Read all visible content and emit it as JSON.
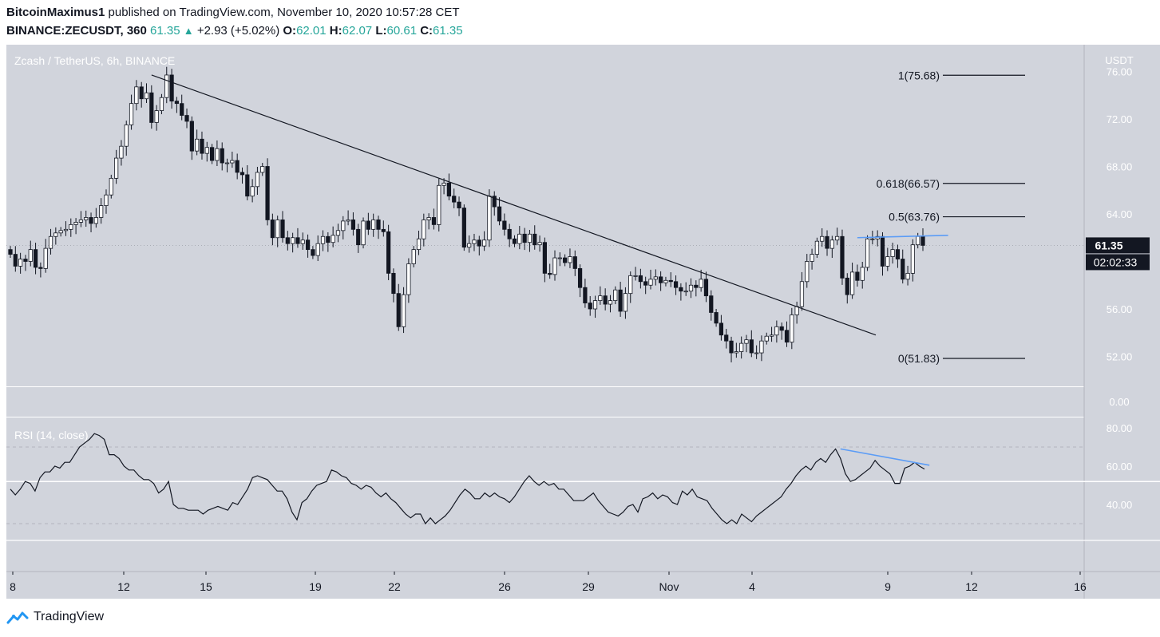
{
  "header": {
    "author": "BitcoinMaximus1",
    "published_text": "published on TradingView.com, November 10, 2020 10:57:28 CET",
    "symbol": "BINANCE:ZECUSDT, 360",
    "last": "61.35",
    "change": "+2.93 (+5.02%)",
    "o_label": "O:",
    "o_value": "62.01",
    "h_label": "H:",
    "h_value": "62.07",
    "l_label": "L:",
    "l_value": "60.61",
    "c_label": "C:",
    "c_value": "61.35"
  },
  "footer": {
    "brand": "TradingView"
  },
  "colors": {
    "pane_bg": "#d1d4dc",
    "up_candle": "#ffffff",
    "down_candle": "#131722",
    "trendline": "#131722",
    "highlight_line": "#5b9cf6",
    "price_tag_bg": "#131722"
  },
  "chart_data": {
    "type": "candlestick",
    "title": "Zcash / TetherUS, 6h, BINANCE",
    "ylabel": "USDT",
    "price_ylim": [
      51.0,
      76.0
    ],
    "price_ticks": [
      "76.00",
      "72.00",
      "68.00",
      "64.00",
      "60.00",
      "56.00",
      "52.00"
    ],
    "volume_tick": "0.00",
    "x_tick_labels": [
      "8",
      "12",
      "15",
      "19",
      "22",
      "26",
      "29",
      "Nov",
      "4",
      "9",
      "12",
      "16"
    ],
    "current_price_label": "61.35",
    "countdown_label": "02:02:33",
    "fib_levels": [
      {
        "label": "1(75.68)",
        "value": 75.68
      },
      {
        "label": "0.618(66.57)",
        "value": 66.57
      },
      {
        "label": "0.5(63.76)",
        "value": 63.76
      },
      {
        "label": "0(51.83)",
        "value": 51.83
      }
    ],
    "candles_close": [
      60.6,
      59.6,
      60.2,
      60.0,
      61.0,
      59.5,
      59.4,
      61.1,
      62.1,
      62.4,
      62.6,
      62.7,
      63.1,
      63.3,
      63.5,
      63.7,
      63.2,
      63.7,
      64.7,
      65.6,
      67.0,
      68.7,
      69.7,
      71.5,
      73.3,
      74.7,
      73.7,
      74.2,
      71.7,
      72.7,
      73.8,
      75.7,
      73.5,
      73.3,
      72.3,
      71.8,
      69.3,
      70.3,
      69.1,
      69.6,
      68.5,
      69.5,
      68.3,
      68.3,
      68.5,
      67.5,
      67.3,
      65.5,
      66.3,
      67.5,
      68.0,
      63.5,
      62.0,
      63.5,
      62.0,
      61.5,
      62.0,
      61.5,
      61.8,
      61.0,
      60.5,
      61.5,
      62.1,
      61.6,
      62.2,
      62.6,
      63.4,
      63.5,
      62.7,
      61.4,
      63.4,
      62.7,
      63.5,
      62.7,
      62.5,
      59.0,
      57.3,
      54.5,
      57.2,
      59.8,
      61.0,
      61.9,
      63.5,
      63.7,
      63.1,
      66.4,
      66.6,
      65.5,
      65.0,
      64.5,
      61.2,
      61.5,
      61.8,
      61.3,
      61.8,
      65.5,
      64.6,
      63.4,
      62.7,
      61.9,
      61.5,
      62.3,
      61.6,
      62.3,
      61.4,
      61.6,
      59.0,
      58.9,
      60.3,
      60.3,
      59.9,
      60.4,
      59.4,
      57.8,
      56.5,
      56.0,
      56.7,
      57.1,
      56.4,
      56.7,
      57.6,
      55.8,
      57.3,
      58.8,
      58.8,
      58.3,
      58.0,
      58.5,
      58.7,
      58.2,
      58.4,
      58.3,
      57.8,
      57.5,
      57.5,
      58.0,
      57.8,
      58.5,
      57.1,
      55.7,
      54.8,
      53.8,
      53.3,
      52.3,
      52.4,
      53.1,
      53.4,
      52.3,
      52.3,
      53.3,
      53.7,
      53.8,
      54.5,
      54.2,
      53.2,
      55.5,
      56.2,
      58.3,
      60.0,
      60.6,
      61.7,
      62.1,
      61.1,
      61.8,
      62.1,
      58.6,
      57.2,
      59.1,
      58.4,
      59.5,
      61.9,
      61.9,
      62.1,
      59.6,
      60.4,
      61.0,
      60.2,
      58.5,
      59.0,
      61.4,
      62.1,
      61.35
    ],
    "rsi": {
      "label": "RSI (14, close)",
      "ylim": [
        10,
        88
      ],
      "ticks": [
        "80.00",
        "60.00",
        "40.00"
      ],
      "upper_band": 70,
      "lower_band": 30,
      "mid_line": 52,
      "values": [
        48,
        45,
        48,
        52,
        51,
        47,
        54,
        57,
        57,
        60,
        59,
        62,
        62,
        66,
        70,
        72,
        74,
        77,
        76,
        74,
        66,
        66,
        64,
        60,
        58,
        58,
        55,
        53,
        53,
        51,
        46,
        48,
        52,
        40,
        38,
        38,
        37,
        37,
        37,
        35,
        37,
        38,
        39,
        38,
        37,
        41,
        40,
        44,
        48,
        54,
        55,
        54,
        53,
        50,
        47,
        47,
        43,
        36,
        32,
        41,
        43,
        47,
        50,
        51,
        52,
        58,
        57,
        55,
        54,
        51,
        50,
        48,
        50,
        49,
        46,
        44,
        46,
        43,
        41,
        38,
        35,
        33,
        35,
        35,
        30,
        33,
        30,
        32,
        34,
        37,
        41,
        45,
        48,
        46,
        43,
        43,
        46,
        44,
        46,
        44,
        43,
        41,
        44,
        48,
        52,
        55,
        52,
        50,
        52,
        50,
        51,
        48,
        48,
        45,
        42,
        42,
        42,
        44,
        46,
        42,
        39,
        36,
        35,
        34,
        36,
        39,
        40,
        36,
        43,
        44,
        46,
        43,
        45,
        44,
        41,
        40,
        47,
        45,
        48,
        44,
        43,
        42,
        38,
        35,
        32,
        30,
        32,
        30,
        35,
        33,
        31,
        34,
        36,
        38,
        40,
        42,
        44,
        48,
        51,
        55,
        58,
        60,
        58,
        62,
        64,
        62,
        66,
        69,
        64,
        56,
        52,
        53,
        55,
        57,
        59,
        63,
        60,
        58,
        56,
        51,
        51,
        59,
        60,
        62,
        60,
        58.5
      ]
    }
  }
}
